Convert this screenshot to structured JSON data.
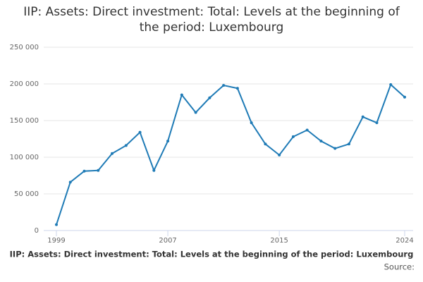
{
  "chart_data": {
    "type": "line",
    "title": "IIP: Assets: Direct investment: Total: Levels at the beginning of the period: Luxembourg",
    "caption": "IIP: Assets: Direct investment: Total: Levels at the beginning of the period: Luxembourg",
    "source": "Source:",
    "x": [
      1999,
      2000,
      2001,
      2002,
      2003,
      2004,
      2005,
      2006,
      2007,
      2008,
      2009,
      2010,
      2011,
      2012,
      2013,
      2014,
      2015,
      2016,
      2017,
      2018,
      2019,
      2020,
      2021,
      2022,
      2023,
      2024
    ],
    "series": [
      {
        "name": "Luxembourg",
        "color": "#1f7bb6",
        "values": [
          8000,
          66000,
          81000,
          82000,
          105000,
          116000,
          134000,
          82000,
          122000,
          185000,
          161000,
          181000,
          198000,
          194000,
          147000,
          118000,
          103000,
          128000,
          137000,
          122000,
          112000,
          118000,
          155000,
          147000,
          199000,
          182000
        ]
      }
    ],
    "xlim": [
      1999,
      2024
    ],
    "xticks": [
      1999,
      2007,
      2015,
      2024
    ],
    "ylim": [
      0,
      250000
    ],
    "yticks": [
      0,
      {
        "value": 50000,
        "label": "50 000"
      },
      {
        "value": 100000,
        "label": "100 000"
      },
      {
        "value": 150000,
        "label": "150 000"
      },
      {
        "value": 200000,
        "label": "200 000"
      },
      {
        "value": 250000,
        "label": "250 000"
      }
    ],
    "grid": true
  }
}
